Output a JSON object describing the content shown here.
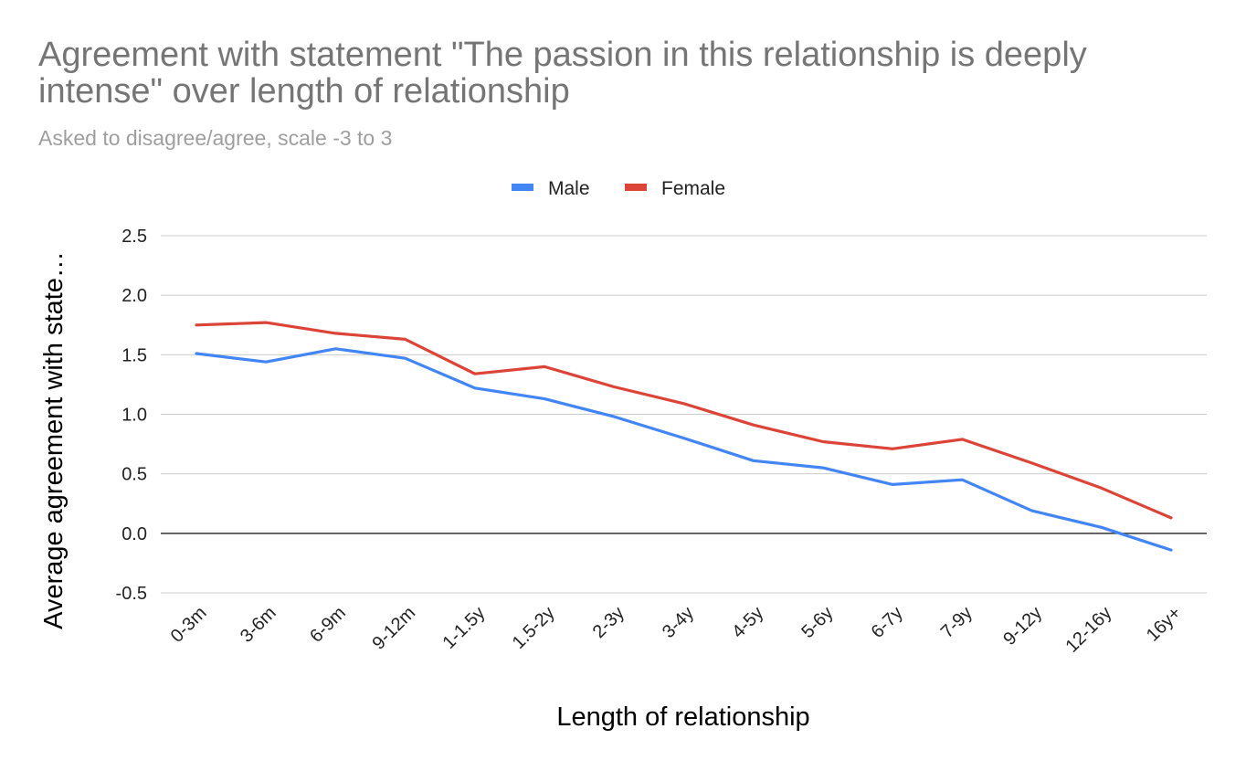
{
  "chart_data": {
    "type": "line",
    "title": "Agreement with statement \"The passion in this relationship is deeply intense\" over length of relationship",
    "subtitle": "Asked to disagree/agree, scale -3 to 3",
    "xlabel": "Length of relationship",
    "ylabel": "Average agreement with state…",
    "categories": [
      "0-3m",
      "3-6m",
      "6-9m",
      "9-12m",
      "1-1.5y",
      "1.5-2y",
      "2-3y",
      "3-4y",
      "4-5y",
      "5-6y",
      "6-7y",
      "7-9y",
      "9-12y",
      "12-16y",
      "16y+"
    ],
    "ylim": [
      -0.5,
      2.5
    ],
    "yticks": [
      "-0.5",
      "0.0",
      "0.5",
      "1.0",
      "1.5",
      "2.0",
      "2.5"
    ],
    "grid": true,
    "legend_position": "top",
    "series": [
      {
        "name": "Male",
        "color": "#4285f4",
        "values": [
          1.51,
          1.44,
          1.55,
          1.47,
          1.22,
          1.13,
          0.98,
          0.8,
          0.61,
          0.55,
          0.41,
          0.45,
          0.19,
          0.05,
          -0.14
        ]
      },
      {
        "name": "Female",
        "color": "#db4437",
        "values": [
          1.75,
          1.77,
          1.68,
          1.63,
          1.34,
          1.4,
          1.23,
          1.09,
          0.91,
          0.77,
          0.71,
          0.79,
          0.59,
          0.38,
          0.13
        ]
      }
    ]
  }
}
